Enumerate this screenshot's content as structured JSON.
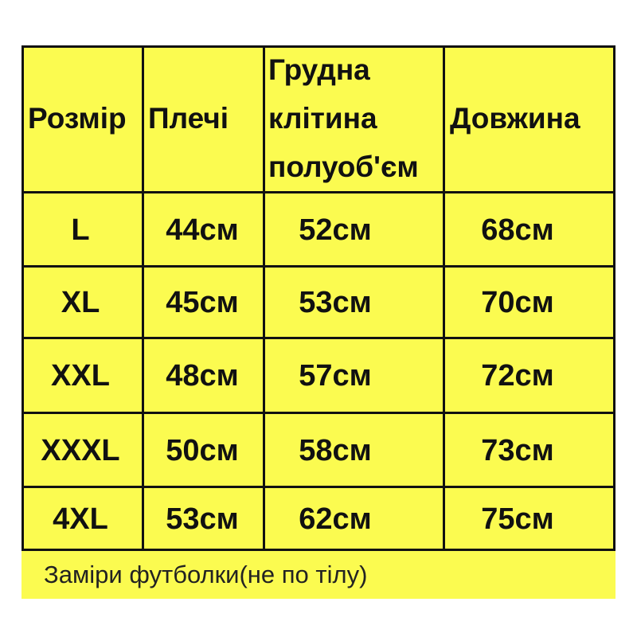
{
  "table": {
    "headers": [
      "Розмір",
      "Плечі",
      "Грудна\nклітина\nполуоб'єм",
      "Довжина"
    ],
    "header_lines": {
      "chest": [
        "Грудна",
        "клітина",
        "полуоб'єм"
      ]
    },
    "rows": [
      [
        "L",
        "44см",
        "52см",
        "68см"
      ],
      [
        "XL",
        "45см",
        "53см",
        "70см"
      ],
      [
        "XXL",
        "48см",
        "57см",
        "72см"
      ],
      [
        "XXXL",
        "50см",
        "58см",
        "73см"
      ],
      [
        "4XL",
        "53см",
        "62см",
        "75см"
      ]
    ]
  },
  "footer_note": "Заміри футболки(не по тілу)",
  "colors": {
    "background": "#fbfb50",
    "border": "#111111"
  }
}
